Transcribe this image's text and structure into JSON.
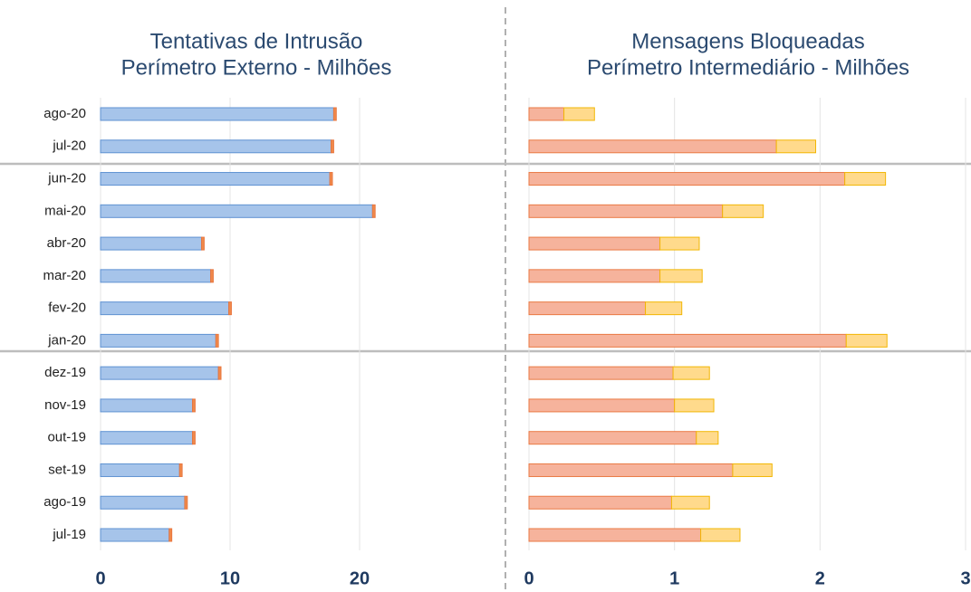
{
  "chart_data": [
    {
      "type": "stacked-barh",
      "title": "Tentativas de Intrusão",
      "subtitle": "Perímetro Externo - Milhões",
      "categories": [
        "ago-20",
        "jul-20",
        "jun-20",
        "mai-20",
        "abr-20",
        "mar-20",
        "fev-20",
        "jan-20",
        "dez-19",
        "nov-19",
        "out-19",
        "set-19",
        "ago-19",
        "jul-19"
      ],
      "series": [
        {
          "color": "#a6c4ea",
          "stroke": "#5f92d2",
          "values": [
            18.0,
            17.8,
            17.7,
            21.0,
            7.8,
            8.5,
            9.9,
            8.9,
            9.1,
            7.1,
            7.1,
            6.1,
            6.5,
            5.3
          ]
        },
        {
          "color": "#f08a4b",
          "stroke": "#e8763f",
          "values": [
            0.2,
            0.2,
            0.2,
            0.2,
            0.2,
            0.2,
            0.2,
            0.2,
            0.2,
            0.2,
            0.2,
            0.2,
            0.2,
            0.2
          ]
        }
      ],
      "xlim": [
        0,
        30
      ],
      "xticks": [
        0,
        10,
        20
      ],
      "grid": true
    },
    {
      "type": "stacked-barh",
      "title": "Mensagens Bloqueadas",
      "subtitle": "Perímetro Intermediário - Milhões",
      "series": [
        {
          "color": "#f6b39c",
          "stroke": "#ea7a45",
          "values": [
            0.24,
            1.7,
            2.17,
            1.33,
            0.9,
            0.9,
            0.8,
            2.18,
            0.99,
            1.0,
            1.15,
            1.4,
            0.98,
            1.18
          ]
        },
        {
          "color": "#ffda8c",
          "stroke": "#f2b705",
          "values": [
            0.21,
            0.27,
            0.28,
            0.28,
            0.27,
            0.29,
            0.25,
            0.28,
            0.25,
            0.27,
            0.15,
            0.27,
            0.26,
            0.27
          ]
        }
      ],
      "xlim": [
        0,
        3
      ],
      "xticks": [
        0,
        1,
        2,
        3
      ],
      "grid": true
    }
  ]
}
